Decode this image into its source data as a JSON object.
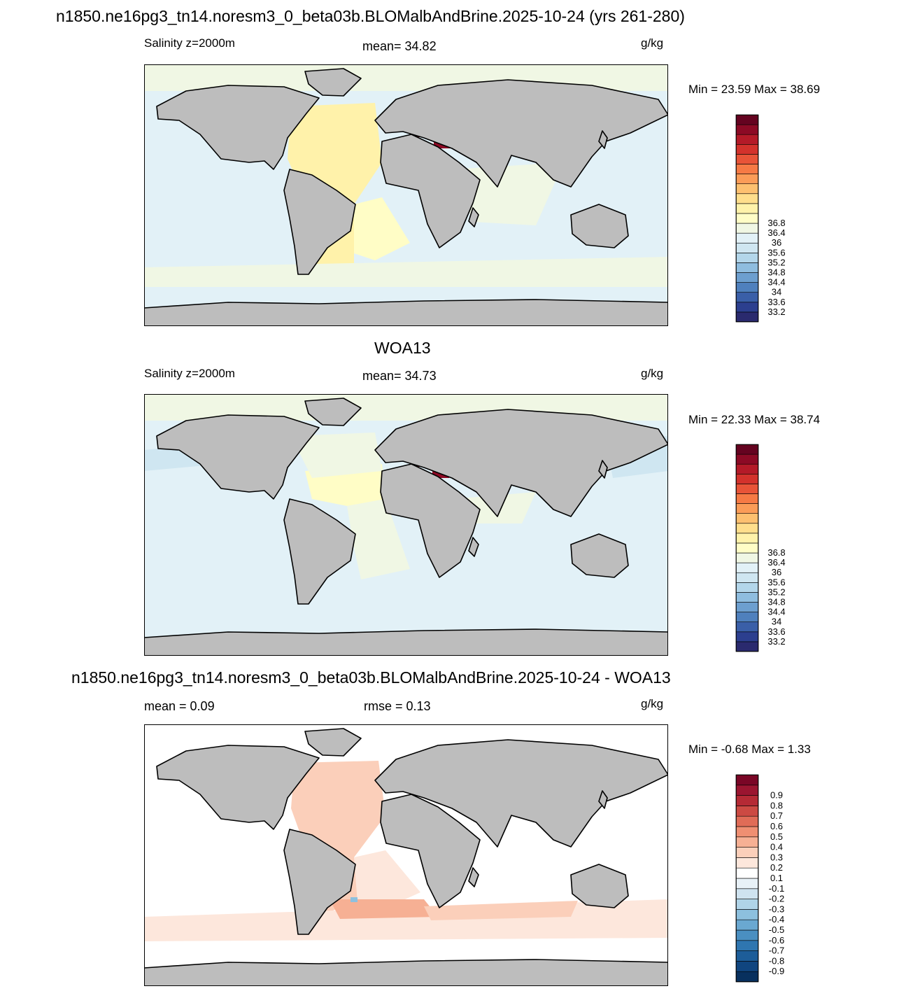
{
  "main_title": "n1850.ne16pg3_tn14.noresm3_0_beta03b.BLOMalbAndBrine.2025-10-24 (yrs 261-280)",
  "panels": [
    {
      "title": "",
      "left_label": "Salinity z=2000m",
      "center_label": "mean=  34.82",
      "units": "g/kg",
      "minmax": "Min =  23.59 Max =  38.69",
      "colorbar": {
        "colors": [
          "#2a2a6e",
          "#2c3f8f",
          "#3a5fa8",
          "#4f80bd",
          "#6d9fcf",
          "#8fbddf",
          "#b3d6ea",
          "#cfe6f1",
          "#e2f1f7",
          "#f0f7e4",
          "#fffdc6",
          "#fff2aa",
          "#ffde8c",
          "#fdc070",
          "#fb9c58",
          "#f67a45",
          "#e85438",
          "#d3322c",
          "#b41a28",
          "#8c0a25",
          "#650320"
        ],
        "labels": [
          "33.2",
          "33.6",
          "34",
          "34.4",
          "34.8",
          "35.2",
          "35.6",
          "36",
          "36.4",
          "36.8"
        ]
      }
    },
    {
      "title": "WOA13",
      "left_label": "Salinity z=2000m",
      "center_label": "mean=  34.73",
      "units": "g/kg",
      "minmax": "Min =  22.33 Max =  38.74",
      "colorbar": {
        "colors": [
          "#2a2a6e",
          "#2c3f8f",
          "#3a5fa8",
          "#4f80bd",
          "#6d9fcf",
          "#8fbddf",
          "#b3d6ea",
          "#cfe6f1",
          "#e2f1f7",
          "#f0f7e4",
          "#fffdc6",
          "#fff2aa",
          "#ffde8c",
          "#fdc070",
          "#fb9c58",
          "#f67a45",
          "#e85438",
          "#d3322c",
          "#b41a28",
          "#8c0a25",
          "#650320"
        ],
        "labels": [
          "33.2",
          "33.6",
          "34",
          "34.4",
          "34.8",
          "35.2",
          "35.6",
          "36",
          "36.4",
          "36.8"
        ]
      }
    },
    {
      "title": "n1850.ne16pg3_tn14.noresm3_0_beta03b.BLOMalbAndBrine.2025-10-24 - WOA13",
      "left_label": "mean =   0.09",
      "center_label": "rmse =   0.13",
      "units": "g/kg",
      "minmax": "Min =  -0.68 Max =   1.33",
      "colorbar": {
        "colors": [
          "#08305e",
          "#10457f",
          "#1d5d99",
          "#2f76b0",
          "#4a8fc1",
          "#6aa8d1",
          "#8dc0de",
          "#b0d4e8",
          "#cfe3f0",
          "#e8f1f7",
          "#ffffff",
          "#fde7dc",
          "#fbcfba",
          "#f6b094",
          "#ef8f72",
          "#e06c57",
          "#cc4a43",
          "#b52a35",
          "#9b1530",
          "#7a0626"
        ],
        "labels": [
          "-0.9",
          "-0.8",
          "-0.7",
          "-0.6",
          "-0.5",
          "-0.4",
          "-0.3",
          "-0.2",
          "-0.1",
          "0.1",
          "0.2",
          "0.3",
          "0.4",
          "0.5",
          "0.6",
          "0.7",
          "0.8",
          "0.9"
        ]
      }
    }
  ],
  "map_colors": {
    "land": "#bdbdbd",
    "coast": "#000000"
  }
}
